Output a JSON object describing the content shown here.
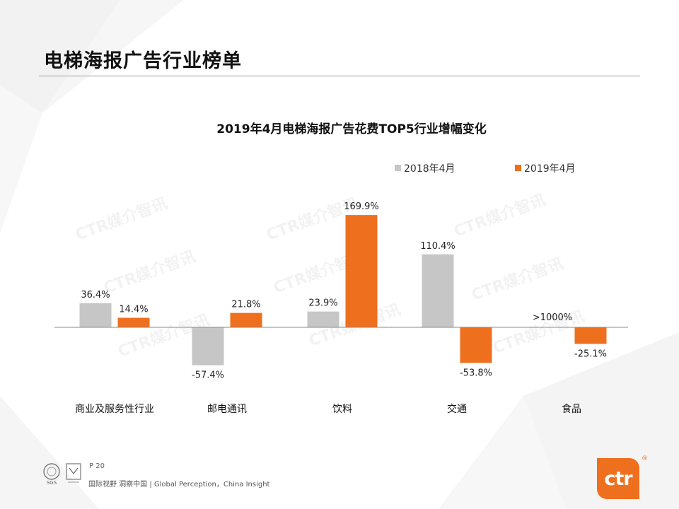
{
  "header": {
    "title": "电梯海报广告行业榜单"
  },
  "chart_data": {
    "type": "bar",
    "title": "2019年4月电梯海报广告花费TOP5行业增幅变化",
    "categories": [
      "商业及服务性行业",
      "邮电通讯",
      "饮料",
      "交通",
      "食品"
    ],
    "series": [
      {
        "name": "2018年4月",
        "color": "#c6c6c6",
        "values": [
          36.4,
          -57.4,
          23.9,
          110.4,
          null
        ],
        "labels": [
          "36.4%",
          "-57.4%",
          "23.9%",
          "110.4%",
          ">1000%"
        ]
      },
      {
        "name": "2019年4月",
        "color": "#ee6f1e",
        "values": [
          14.4,
          21.8,
          169.9,
          -53.8,
          -25.1
        ],
        "labels": [
          "14.4%",
          "21.8%",
          "169.9%",
          "-53.8%",
          "-25.1%"
        ]
      }
    ],
    "ylim": [
      -70,
      180
    ],
    "grid": false,
    "legend_position": "top-right",
    "xlabel": "",
    "ylabel": ""
  },
  "watermark": "CTR媒介智讯",
  "footer": {
    "page": "P 20",
    "tagline": "国际视野 洞察中国 | Global Perception，China Insight",
    "logo_label": "SGS",
    "brand": "ctr",
    "reg_mark": "®"
  },
  "icons": [
    "sgs-cert-icon",
    "ukas-cert-icon"
  ],
  "colors": {
    "accent": "#ee6f1e",
    "series_2018": "#c6c6c6",
    "series_2019": "#ee6f1e"
  }
}
